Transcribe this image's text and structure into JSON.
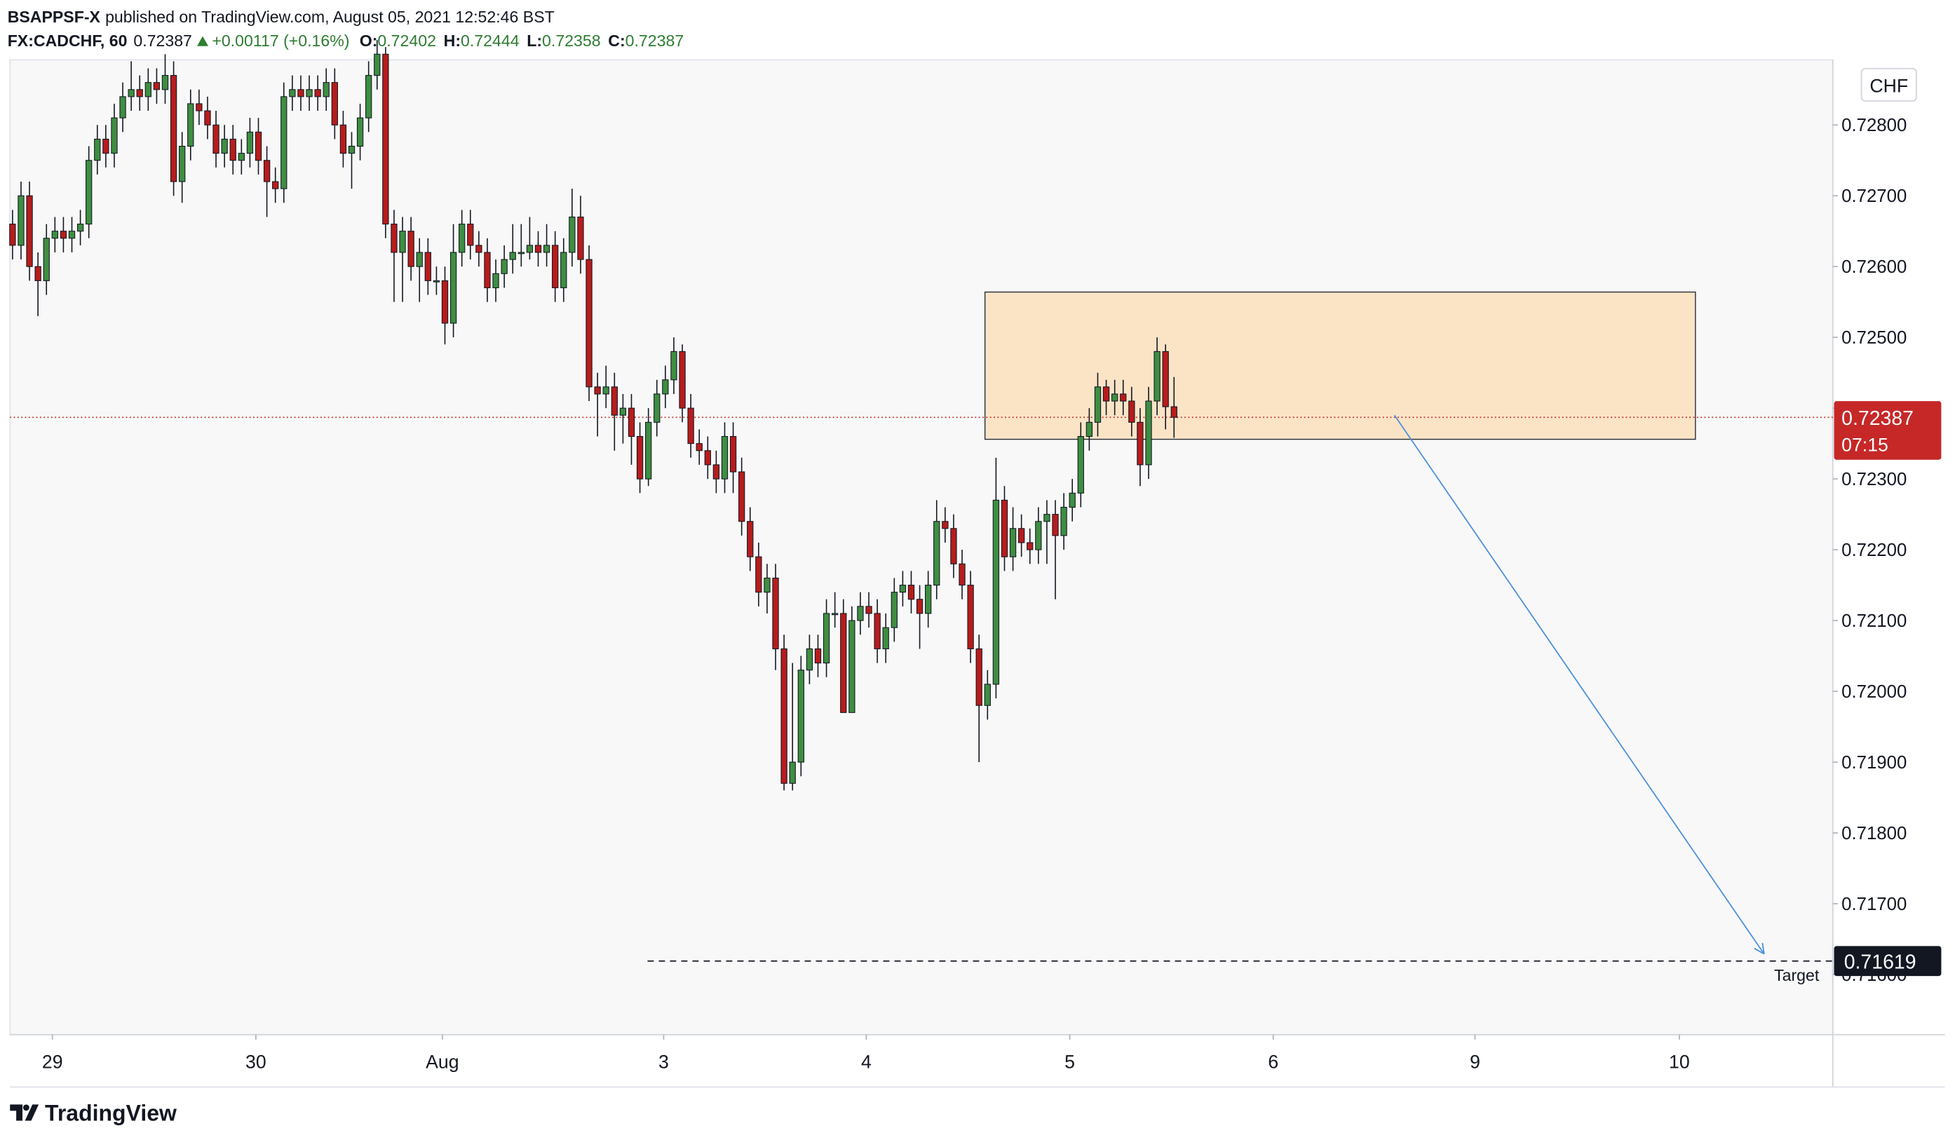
{
  "header": {
    "author": "BSAPPSF-X",
    "published": "published on TradingView.com, August 05, 2021 12:52:46 BST",
    "symbol": "FX:CADCHF, 60",
    "last": "0.72387",
    "change": "+0.00117 (+0.16%)",
    "ohlc": [
      {
        "label": "O:",
        "value": "0.72402"
      },
      {
        "label": "H:",
        "value": "0.72444"
      },
      {
        "label": "L:",
        "value": "0.72358"
      },
      {
        "label": "C:",
        "value": "0.72387"
      }
    ]
  },
  "footer": {
    "brand": "TradingView"
  },
  "chart_data": {
    "type": "candlestick",
    "currency": "CHF",
    "up_color": "#3e8e41",
    "down_color": "#b71c1c",
    "wick_color": "#131722",
    "xlim": [
      -0.3,
      214.7
    ],
    "ylim": [
      0.71515,
      0.72892
    ],
    "xticks": [
      {
        "value": 4.7,
        "label": "29"
      },
      {
        "value": 28.7,
        "label": "30"
      },
      {
        "value": 50.7,
        "label": "Aug"
      },
      {
        "value": 76.8,
        "label": "3"
      },
      {
        "value": 100.7,
        "label": "4"
      },
      {
        "value": 124.7,
        "label": "5"
      },
      {
        "value": 148.7,
        "label": "6"
      },
      {
        "value": 172.5,
        "label": "9"
      },
      {
        "value": 196.6,
        "label": "10"
      }
    ],
    "yticks": [
      {
        "value": 0.716,
        "label": "0.71600"
      },
      {
        "value": 0.717,
        "label": "0.71700"
      },
      {
        "value": 0.718,
        "label": "0.71800"
      },
      {
        "value": 0.719,
        "label": "0.71900"
      },
      {
        "value": 0.72,
        "label": "0.72000"
      },
      {
        "value": 0.721,
        "label": "0.72100"
      },
      {
        "value": 0.722,
        "label": "0.72200"
      },
      {
        "value": 0.723,
        "label": "0.72300"
      },
      {
        "value": 0.724,
        "label": "0.72400"
      },
      {
        "value": 0.725,
        "label": "0.72500"
      },
      {
        "value": 0.726,
        "label": "0.72600"
      },
      {
        "value": 0.727,
        "label": "0.72700"
      },
      {
        "value": 0.728,
        "label": "0.72800"
      }
    ],
    "open": [
      0.7266,
      0.7263,
      0.727,
      0.726,
      0.7258,
      0.7264,
      0.7265,
      0.7264,
      0.7265,
      0.7266,
      0.7275,
      0.7278,
      0.7276,
      0.7281,
      0.7284,
      0.7285,
      0.7284,
      0.7286,
      0.7285,
      0.7287,
      0.7272,
      0.7277,
      0.7283,
      0.7282,
      0.728,
      0.7276,
      0.7278,
      0.7275,
      0.7276,
      0.7279,
      0.7275,
      0.7272,
      0.7271,
      0.7284,
      0.7285,
      0.7284,
      0.7285,
      0.7284,
      0.7286,
      0.728,
      0.7276,
      0.7277,
      0.7281,
      0.7287,
      0.729,
      0.7266,
      0.7262,
      0.7265,
      0.726,
      0.7262,
      0.7258,
      0.7258,
      0.7252,
      0.7262,
      0.7266,
      0.7263,
      0.7262,
      0.7257,
      0.7259,
      0.7261,
      0.7262,
      0.7262,
      0.7263,
      0.7262,
      0.7263,
      0.7257,
      0.7262,
      0.7267,
      0.7261,
      0.7243,
      0.7242,
      0.7243,
      0.7239,
      0.724,
      0.7236,
      0.723,
      0.7238,
      0.7242,
      0.7244,
      0.7248,
      0.724,
      0.7235,
      0.7234,
      0.7232,
      0.723,
      0.7236,
      0.7231,
      0.7224,
      0.7219,
      0.7214,
      0.7216,
      0.7206,
      0.7187,
      0.719,
      0.7203,
      0.7206,
      0.7204,
      0.7211,
      0.7211,
      0.7197,
      0.721,
      0.7212,
      0.7211,
      0.7206,
      0.7209,
      0.7214,
      0.7215,
      0.7213,
      0.7211,
      0.7215,
      0.7224,
      0.7223,
      0.7218,
      0.7215,
      0.7206,
      0.7198,
      0.7201,
      0.7227,
      0.7219,
      0.7223,
      0.7221,
      0.722,
      0.7224,
      0.7225,
      0.7222,
      0.7226,
      0.7228,
      0.7236,
      0.7238,
      0.7243,
      0.7241,
      0.7242,
      0.7241,
      0.7238,
      0.7232,
      0.7241,
      0.7248,
      0.72402
    ],
    "high": [
      0.7268,
      0.7272,
      0.7272,
      0.7262,
      0.7266,
      0.7267,
      0.7267,
      0.7267,
      0.7268,
      0.7277,
      0.728,
      0.728,
      0.7283,
      0.7286,
      0.7289,
      0.7287,
      0.7288,
      0.7288,
      0.729,
      0.7289,
      0.7279,
      0.7285,
      0.7285,
      0.7284,
      0.7282,
      0.728,
      0.728,
      0.7278,
      0.7281,
      0.7281,
      0.7277,
      0.7274,
      0.7286,
      0.7287,
      0.7287,
      0.7287,
      0.7287,
      0.7288,
      0.7288,
      0.7282,
      0.7279,
      0.7283,
      0.7289,
      0.7292,
      0.7291,
      0.7268,
      0.7267,
      0.7267,
      0.7264,
      0.7264,
      0.726,
      0.726,
      0.7266,
      0.7268,
      0.7268,
      0.7265,
      0.7264,
      0.7261,
      0.7263,
      0.7266,
      0.7266,
      0.7267,
      0.7265,
      0.7266,
      0.7265,
      0.7264,
      0.7271,
      0.727,
      0.7263,
      0.7245,
      0.7246,
      0.7245,
      0.7242,
      0.7242,
      0.7238,
      0.724,
      0.7244,
      0.7246,
      0.725,
      0.7249,
      0.7242,
      0.7237,
      0.7236,
      0.7234,
      0.7238,
      0.7238,
      0.7233,
      0.7226,
      0.7221,
      0.7218,
      0.7218,
      0.7208,
      0.7204,
      0.7205,
      0.7208,
      0.7208,
      0.7213,
      0.7214,
      0.7213,
      0.7212,
      0.7214,
      0.7214,
      0.7213,
      0.7211,
      0.7216,
      0.7217,
      0.7217,
      0.7215,
      0.7217,
      0.7227,
      0.7226,
      0.7225,
      0.722,
      0.7217,
      0.7208,
      0.7203,
      0.7233,
      0.7229,
      0.7226,
      0.7225,
      0.7223,
      0.7226,
      0.7227,
      0.7227,
      0.7228,
      0.723,
      0.7238,
      0.724,
      0.7245,
      0.7244,
      0.7244,
      0.7244,
      0.7243,
      0.724,
      0.7243,
      0.725,
      0.7249,
      0.72444
    ],
    "low": [
      0.7261,
      0.7261,
      0.7258,
      0.7253,
      0.7256,
      0.7262,
      0.7262,
      0.7262,
      0.7263,
      0.7264,
      0.7273,
      0.7274,
      0.7274,
      0.7279,
      0.7282,
      0.7282,
      0.7282,
      0.7283,
      0.7283,
      0.727,
      0.7269,
      0.7275,
      0.728,
      0.7278,
      0.7274,
      0.7274,
      0.7273,
      0.7273,
      0.7274,
      0.7273,
      0.7267,
      0.7269,
      0.7269,
      0.7282,
      0.7282,
      0.7282,
      0.7282,
      0.7282,
      0.7278,
      0.7274,
      0.7271,
      0.7275,
      0.7279,
      0.7285,
      0.7264,
      0.7255,
      0.7255,
      0.7258,
      0.7255,
      0.7256,
      0.7256,
      0.7249,
      0.725,
      0.726,
      0.7261,
      0.726,
      0.7255,
      0.7255,
      0.7257,
      0.7259,
      0.726,
      0.7261,
      0.726,
      0.726,
      0.7255,
      0.7255,
      0.726,
      0.7259,
      0.7241,
      0.7236,
      0.724,
      0.7234,
      0.7235,
      0.7232,
      0.7228,
      0.7229,
      0.7236,
      0.724,
      0.7242,
      0.7238,
      0.7233,
      0.7232,
      0.723,
      0.7228,
      0.7228,
      0.7228,
      0.7222,
      0.7217,
      0.7212,
      0.7211,
      0.7203,
      0.7186,
      0.7186,
      0.7188,
      0.7201,
      0.7202,
      0.7202,
      0.7209,
      0.7197,
      0.7197,
      0.7208,
      0.7209,
      0.7204,
      0.7204,
      0.7207,
      0.7212,
      0.7211,
      0.7206,
      0.7209,
      0.7213,
      0.7221,
      0.7216,
      0.7213,
      0.7204,
      0.719,
      0.7196,
      0.7199,
      0.7217,
      0.7217,
      0.7219,
      0.7218,
      0.7218,
      0.7218,
      0.7213,
      0.722,
      0.7224,
      0.7226,
      0.7234,
      0.7236,
      0.7239,
      0.7239,
      0.7239,
      0.7236,
      0.7229,
      0.723,
      0.7239,
      0.7237,
      0.72358
    ],
    "close": [
      0.7263,
      0.727,
      0.726,
      0.7258,
      0.7264,
      0.7265,
      0.7264,
      0.7265,
      0.7266,
      0.7275,
      0.7278,
      0.7276,
      0.7281,
      0.7284,
      0.7285,
      0.7284,
      0.7286,
      0.7285,
      0.7287,
      0.7272,
      0.7277,
      0.7283,
      0.7282,
      0.728,
      0.7276,
      0.7278,
      0.7275,
      0.7276,
      0.7279,
      0.7275,
      0.7272,
      0.7271,
      0.7284,
      0.7285,
      0.7284,
      0.7285,
      0.7284,
      0.7286,
      0.728,
      0.7276,
      0.7277,
      0.7281,
      0.7287,
      0.729,
      0.7266,
      0.7262,
      0.7265,
      0.726,
      0.7262,
      0.7258,
      0.7258,
      0.7252,
      0.7262,
      0.7266,
      0.7263,
      0.7262,
      0.7257,
      0.7259,
      0.7261,
      0.7262,
      0.7262,
      0.7263,
      0.7262,
      0.7263,
      0.7257,
      0.7262,
      0.7267,
      0.7261,
      0.7243,
      0.7242,
      0.7243,
      0.7239,
      0.724,
      0.7236,
      0.723,
      0.7238,
      0.7242,
      0.7244,
      0.7248,
      0.724,
      0.7235,
      0.7234,
      0.7232,
      0.723,
      0.7236,
      0.7231,
      0.7224,
      0.7219,
      0.7214,
      0.7216,
      0.7206,
      0.7187,
      0.719,
      0.7203,
      0.7206,
      0.7204,
      0.7211,
      0.7211,
      0.7197,
      0.721,
      0.7212,
      0.7211,
      0.7206,
      0.7209,
      0.7214,
      0.7215,
      0.7213,
      0.7211,
      0.7215,
      0.7224,
      0.7223,
      0.7218,
      0.7215,
      0.7206,
      0.7198,
      0.7201,
      0.7227,
      0.7219,
      0.7223,
      0.7221,
      0.722,
      0.7224,
      0.7225,
      0.7222,
      0.7226,
      0.7228,
      0.7236,
      0.7238,
      0.7243,
      0.7241,
      0.7242,
      0.7241,
      0.7238,
      0.7232,
      0.7241,
      0.7248,
      0.72402,
      0.72387
    ],
    "current_price": {
      "value": 0.72387,
      "label": "0.72387",
      "countdown": "07:15",
      "color": "#c62828"
    },
    "target": {
      "value": 0.71619,
      "label": "0.71619",
      "text": "Target",
      "x_start": 74.9
    },
    "zone": {
      "x": [
        114.7,
        198.5
      ],
      "y": [
        0.72356,
        0.72564
      ],
      "color": "#fbe4c6"
    },
    "arrow": {
      "from": [
        163,
        0.7239
      ],
      "to": [
        206.6,
        0.71629
      ],
      "color": "#4a8fdc"
    }
  }
}
